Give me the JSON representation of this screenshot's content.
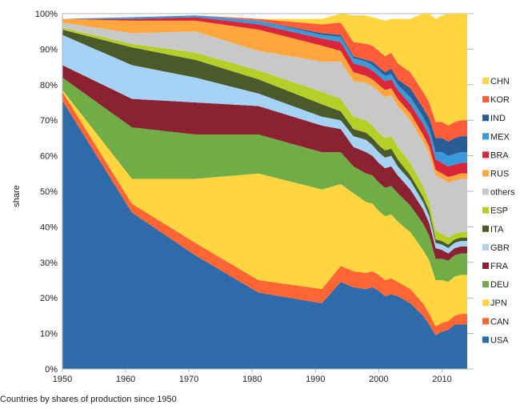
{
  "caption": "Countries by shares of production since 1950",
  "chart_data": {
    "type": "area",
    "stacked": true,
    "ylabel": "share",
    "xlabel": "",
    "xlim": [
      1950,
      2015
    ],
    "ylim": [
      0,
      100
    ],
    "x_ticks": [
      1950,
      1960,
      1970,
      1980,
      1990,
      2000,
      2010
    ],
    "y_ticks": [
      "0%",
      "10%",
      "20%",
      "30%",
      "40%",
      "50%",
      "60%",
      "70%",
      "80%",
      "90%",
      "100%"
    ],
    "grid": "horizontal",
    "legend_position": "right",
    "x": [
      1950,
      1961,
      1971,
      1981,
      1991,
      1994,
      1996,
      1998,
      1999,
      2000,
      2001,
      2002,
      2003,
      2005,
      2007,
      2008,
      2009,
      2010,
      2011,
      2012,
      2013,
      2014
    ],
    "series": [
      {
        "name": "USA",
        "color": "#2f6ba8",
        "values": [
          75.5,
          44,
          32,
          21.5,
          18.5,
          24.5,
          23,
          22.5,
          23,
          22,
          20.5,
          21,
          20.5,
          18.5,
          15,
          12.5,
          9.5,
          10.5,
          11,
          12.5,
          12.5,
          12.5
        ]
      },
      {
        "name": "CAN",
        "color": "#ff6633",
        "values": [
          2.5,
          2.5,
          3.5,
          3.5,
          4,
          4.5,
          4.5,
          4.5,
          4.5,
          4.5,
          4.5,
          4.5,
          4,
          4,
          3.5,
          3,
          2.5,
          2.5,
          2.5,
          2.5,
          3,
          3
        ]
      },
      {
        "name": "JPN",
        "color": "#ffd640",
        "values": [
          0.5,
          7,
          18,
          30,
          28,
          23,
          22,
          20,
          19,
          18,
          18,
          18,
          17,
          16,
          15,
          15,
          13,
          12,
          11,
          11,
          11,
          11
        ]
      },
      {
        "name": "DEU",
        "color": "#70ad47",
        "values": [
          3.5,
          14.5,
          12.5,
          11,
          10.5,
          9,
          7.5,
          8,
          8,
          8,
          8,
          8,
          8,
          7.5,
          7.5,
          7,
          6,
          6,
          6,
          6,
          6,
          6
        ]
      },
      {
        "name": "FRA",
        "color": "#8b2232",
        "values": [
          3.5,
          8,
          9,
          8,
          7.5,
          6.5,
          5.5,
          6,
          5.5,
          5.5,
          5.5,
          5.5,
          5,
          4.5,
          4,
          3.5,
          3,
          2.5,
          2,
          2,
          2,
          2
        ]
      },
      {
        "name": "GBR",
        "color": "#a6d2f5",
        "values": [
          8.5,
          9.5,
          7,
          3.5,
          2.5,
          2.5,
          3,
          3.5,
          3,
          3,
          3,
          3,
          2.5,
          2.5,
          2,
          2,
          1.5,
          1.5,
          1.5,
          1.5,
          1.5,
          1.5
        ]
      },
      {
        "name": "ITA",
        "color": "#4b5a2a",
        "values": [
          1.5,
          5,
          5,
          4,
          3.5,
          2.5,
          2,
          2,
          2,
          2,
          2,
          2,
          2,
          1.5,
          1.5,
          1.5,
          1,
          1,
          1,
          1,
          1,
          1
        ]
      },
      {
        "name": "ESP",
        "color": "#b5cf28",
        "values": [
          0.5,
          1,
          2,
          2.5,
          3.5,
          3.5,
          3.5,
          3.5,
          3.5,
          3.5,
          3.5,
          3.5,
          3.5,
          3.5,
          3,
          2.5,
          2.5,
          2,
          2,
          1.5,
          1.5,
          1.5
        ]
      },
      {
        "name": "others",
        "color": "#c8c8c8",
        "values": [
          1.5,
          3,
          6,
          5.5,
          8.5,
          10.5,
          10,
          10.5,
          11,
          11.5,
          11.5,
          11.5,
          11.5,
          12,
          12.5,
          13.5,
          15.5,
          15.5,
          15.5,
          15,
          15,
          15
        ]
      },
      {
        "name": "RUS",
        "color": "#ffa73c",
        "values": [
          1,
          3.5,
          3,
          6,
          4.5,
          3,
          2.5,
          2,
          2,
          2,
          2,
          2,
          2,
          2,
          2,
          2,
          1.5,
          1.5,
          1.5,
          1.5,
          1.5,
          1.5
        ]
      },
      {
        "name": "BRA",
        "color": "#d9263a",
        "values": [
          0,
          0.5,
          1,
          1.5,
          2,
          2.5,
          2.5,
          2.5,
          2.5,
          2.5,
          2.5,
          2.5,
          2.5,
          2.5,
          3,
          3,
          3,
          3,
          3,
          3,
          3,
          3
        ]
      },
      {
        "name": "MEX",
        "color": "#3a9ad9",
        "values": [
          0,
          0.5,
          0.5,
          1,
          1,
          1.5,
          1.5,
          1.5,
          1.5,
          1.5,
          1.5,
          1.5,
          1.5,
          2,
          2,
          2,
          2,
          3,
          3,
          3,
          3,
          3
        ]
      },
      {
        "name": "IND",
        "color": "#2a5d96",
        "values": [
          0,
          0,
          0,
          0,
          0.5,
          0.5,
          0.5,
          0.5,
          1,
          1,
          1,
          1.5,
          1.5,
          2.5,
          2.5,
          3,
          4,
          4,
          4,
          4.5,
          4.5,
          4.5
        ]
      },
      {
        "name": "KOR",
        "color": "#ff5c3a",
        "values": [
          0,
          0,
          0,
          0.5,
          2.5,
          3.5,
          4,
          4.5,
          4.5,
          4.5,
          4.5,
          4.5,
          4.5,
          4.5,
          4.5,
          4.5,
          4.5,
          4.5,
          4.5,
          4.5,
          4.5,
          4.5
        ]
      },
      {
        "name": "CHN",
        "color": "#ffd640",
        "values": [
          0,
          0,
          0,
          0,
          1.5,
          2.5,
          7.5,
          8,
          8,
          9,
          10,
          9.5,
          12.5,
          15,
          22,
          25,
          29,
          30,
          31.5,
          30.5,
          30,
          30
        ]
      }
    ]
  }
}
